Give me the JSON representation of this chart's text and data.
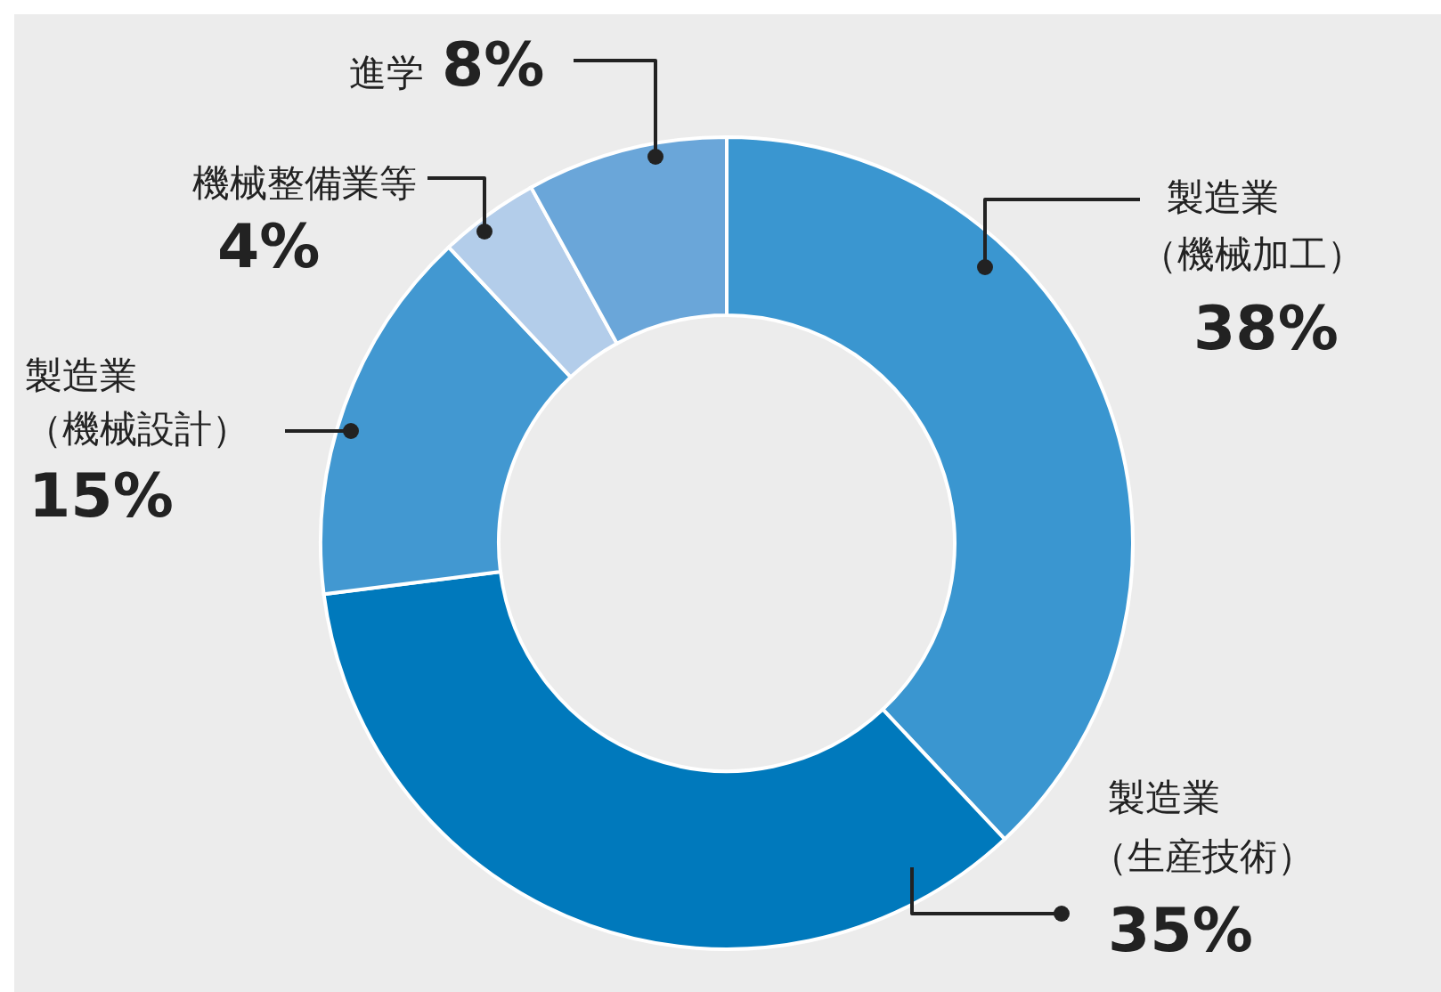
{
  "chart_data": {
    "type": "donut",
    "categories": [
      "製造業（機械加工）",
      "製造業（生産技術）",
      "製造業（機械設計）",
      "機械整備業等",
      "進学"
    ],
    "values": [
      38,
      35,
      15,
      4,
      8
    ],
    "colors": [
      "#3a96d0",
      "#0079bc",
      "#4298d1",
      "#b3cdea",
      "#6aa6d9"
    ],
    "value_labels": [
      "38%",
      "35%",
      "15%",
      "4%",
      "8%"
    ]
  }
}
